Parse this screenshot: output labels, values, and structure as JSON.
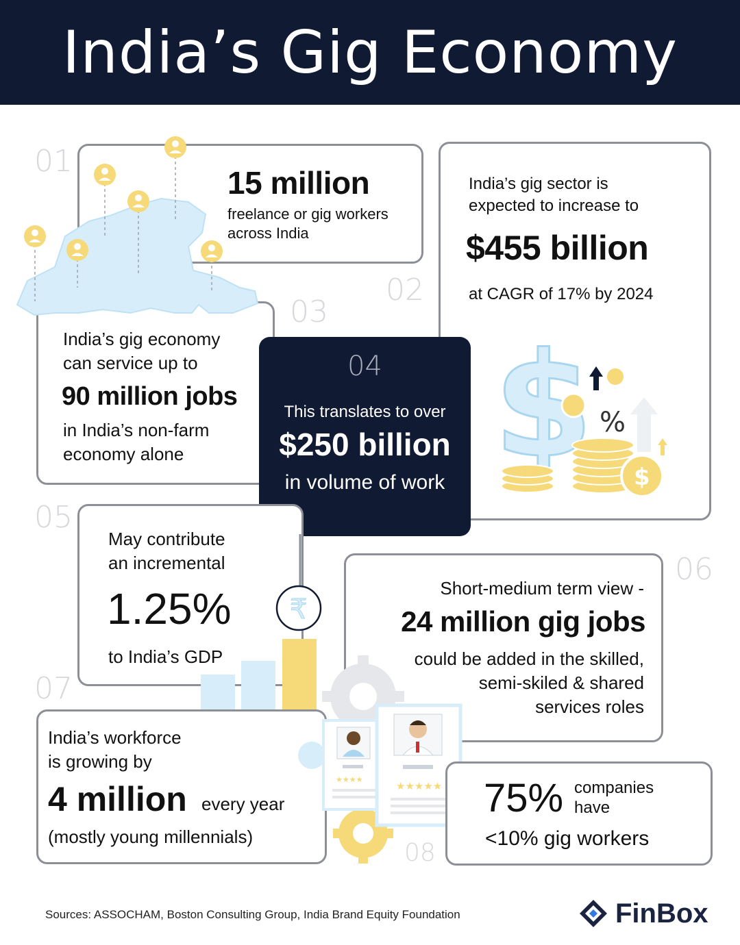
{
  "header": {
    "title": "India’s Gig Economy"
  },
  "cards": {
    "c01": {
      "num": "01",
      "value": "15 million",
      "line1": "freelance or gig workers",
      "line2": "across India"
    },
    "c02": {
      "num": "02",
      "pre1": "India’s gig sector is",
      "pre2": "expected to increase to",
      "value": "$455 billion",
      "post": "at CAGR of 17% by 2024"
    },
    "c03": {
      "num": "03",
      "pre1": "India’s gig economy",
      "pre2": "can service up to",
      "value": "90 million jobs",
      "post1": "in India’s non-farm",
      "post2": "economy alone"
    },
    "c04": {
      "num": "04",
      "pre": "This translates to over",
      "value": "$250 billion",
      "post": "in volume of work"
    },
    "c05": {
      "num": "05",
      "pre1": "May contribute",
      "pre2": "an incremental",
      "value": "1.25%",
      "post": "to India’s GDP"
    },
    "c06": {
      "num": "06",
      "pre": "Short-medium term view -",
      "value": "24 million gig jobs",
      "post1": "could be added in the skilled,",
      "post2": "semi-skiled & shared",
      "post3": "services roles"
    },
    "c07": {
      "num": "07",
      "pre1": "India’s workforce",
      "pre2": "is growing by",
      "value": "4 million",
      "suffix": "every year",
      "post": "(mostly young millennials)"
    },
    "c08": {
      "num": "08",
      "value": "75%",
      "side1": "companies",
      "side2": "have",
      "post": "<10% gig workers"
    }
  },
  "footer": {
    "sources": "Sources: ASSOCHAM, Boston Consulting Group, India Brand Equity Foundation",
    "brand": "FinBox"
  },
  "colors": {
    "navy": "#111a33",
    "accent_yellow": "#f6d978",
    "light_blue": "#d7eefa"
  },
  "icons": {
    "rupee": "₹",
    "percent": "%",
    "dollar": "$"
  }
}
